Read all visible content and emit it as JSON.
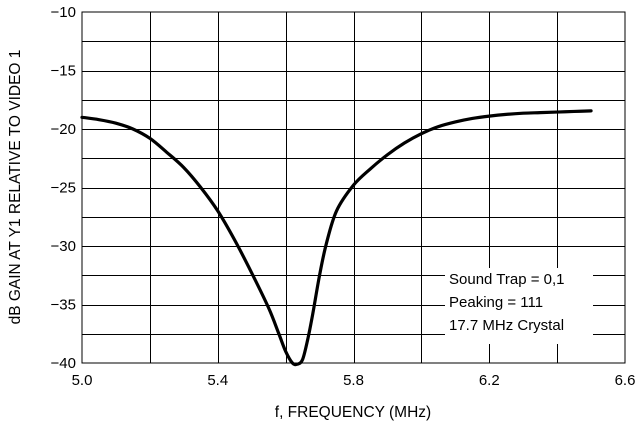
{
  "chart_data": {
    "type": "line",
    "title": "",
    "xlabel": "f, FREQUENCY (MHz)",
    "ylabel": "dB GAIN AT Y1 RELATIVE TO VIDEO 1",
    "xlim": [
      5.0,
      6.6
    ],
    "ylim": [
      -40,
      -10
    ],
    "x_ticks": [
      5.0,
      5.4,
      5.8,
      6.2,
      6.6
    ],
    "x_tick_labels": [
      "5.0",
      "5.4",
      "5.8",
      "6.2",
      "6.6"
    ],
    "y_ticks": [
      -40,
      -35,
      -30,
      -25,
      -20,
      -15,
      -10
    ],
    "y_tick_labels": [
      "−40",
      "−35",
      "−30",
      "−25",
      "−20",
      "−15",
      "−10"
    ],
    "x_minor_step": 0.2,
    "y_minor_step": 2.5,
    "grid": true,
    "legend": "none",
    "annotations": [
      "Sound Trap = 0,1",
      "Peaking = 111",
      "17.7 MHz Crystal"
    ],
    "series": [
      {
        "x": [
          5.0,
          5.05,
          5.1,
          5.15,
          5.2,
          5.25,
          5.3,
          5.35,
          5.4,
          5.45,
          5.5,
          5.55,
          5.58,
          5.6,
          5.62,
          5.635,
          5.65,
          5.665,
          5.68,
          5.7,
          5.72,
          5.75,
          5.8,
          5.85,
          5.9,
          5.95,
          6.0,
          6.05,
          6.1,
          6.15,
          6.2,
          6.25,
          6.3,
          6.35,
          6.4,
          6.45,
          6.5
        ],
        "y": [
          -19.0,
          -19.2,
          -19.5,
          -20.0,
          -20.8,
          -22.0,
          -23.3,
          -25.0,
          -27.0,
          -29.5,
          -32.3,
          -35.3,
          -37.5,
          -39.0,
          -40.0,
          -40.1,
          -39.7,
          -38.0,
          -35.8,
          -32.5,
          -29.8,
          -27.0,
          -24.8,
          -23.4,
          -22.2,
          -21.2,
          -20.4,
          -19.8,
          -19.4,
          -19.1,
          -18.9,
          -18.75,
          -18.65,
          -18.6,
          -18.55,
          -18.5,
          -18.45
        ]
      }
    ]
  }
}
